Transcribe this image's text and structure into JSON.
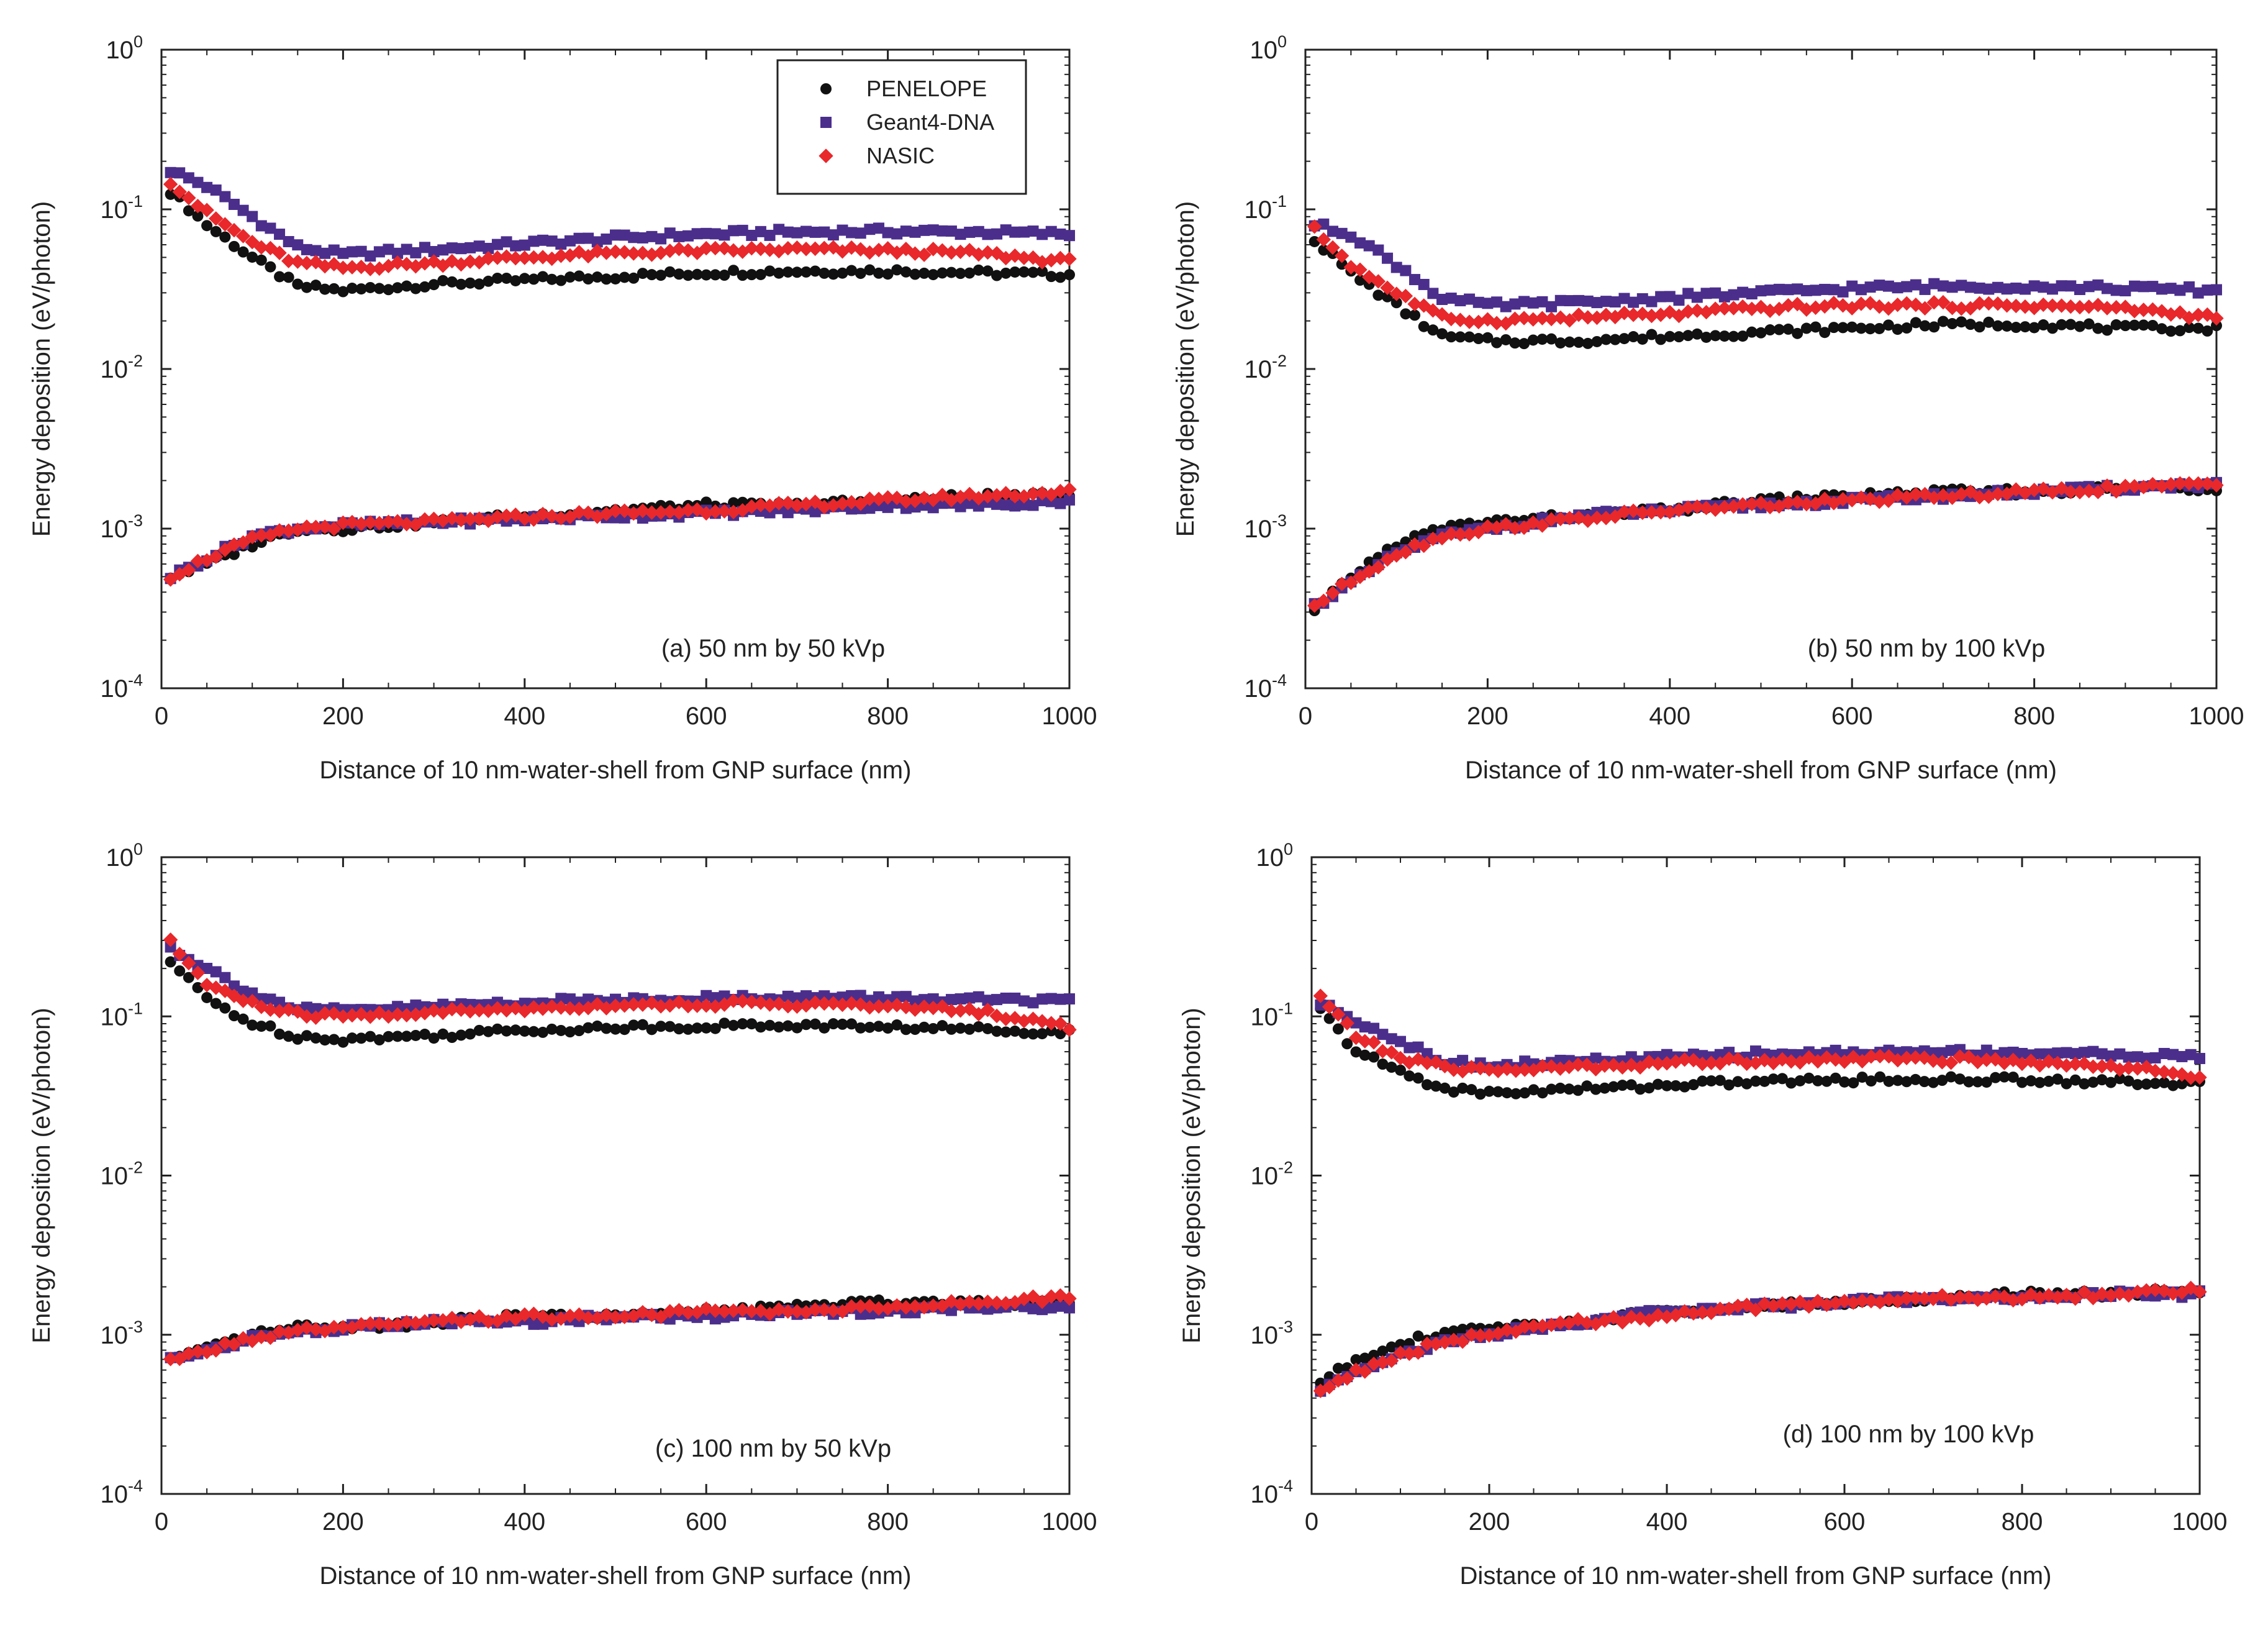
{
  "legend": {
    "entries": [
      {
        "label": "PENELOPE",
        "color": "#111111",
        "marker": "circle"
      },
      {
        "label": "Geant4-DNA",
        "color": "#4b2e8c",
        "marker": "square"
      },
      {
        "label": "NASIC",
        "color": "#e8282b",
        "marker": "diamond"
      }
    ]
  },
  "chart_data": [
    {
      "type": "scatter",
      "panel": "a",
      "annotation": "(a) 50 nm by 50 kVp",
      "xlabel": "Distance of 10 nm-water-shell from GNP surface (nm)",
      "ylabel": "Energy deposition (eV/photon)",
      "xlim": [
        0,
        1000
      ],
      "ylim": [
        0.0001,
        1
      ],
      "yscale": "log",
      "xticks": [
        "0",
        "200",
        "400",
        "600",
        "800",
        "1000"
      ],
      "yticks": [
        {
          "base": "10",
          "exp": "0"
        },
        {
          "base": "10",
          "exp": "-1"
        },
        {
          "base": "10",
          "exp": "-2"
        },
        {
          "base": "10",
          "exp": "-3"
        },
        {
          "base": "10",
          "exp": "-4"
        }
      ],
      "x": [
        10,
        50,
        100,
        150,
        200,
        300,
        400,
        500,
        600,
        700,
        800,
        900,
        1000
      ],
      "series": [
        {
          "name": "PENELOPE upper",
          "legend": "PENELOPE",
          "values": [
            0.13,
            0.08,
            0.05,
            0.033,
            0.031,
            0.034,
            0.036,
            0.038,
            0.04,
            0.041,
            0.041,
            0.04,
            0.039
          ]
        },
        {
          "name": "Geant4-DNA upper",
          "legend": "Geant4-DNA",
          "values": [
            0.175,
            0.14,
            0.09,
            0.058,
            0.052,
            0.056,
            0.061,
            0.066,
            0.07,
            0.072,
            0.073,
            0.072,
            0.07
          ]
        },
        {
          "name": "NASIC upper",
          "legend": "NASIC",
          "values": [
            0.15,
            0.095,
            0.062,
            0.046,
            0.043,
            0.046,
            0.05,
            0.053,
            0.055,
            0.056,
            0.055,
            0.053,
            0.047
          ]
        },
        {
          "name": "PENELOPE lower",
          "legend": "PENELOPE",
          "values": [
            0.0005,
            0.0006,
            0.0008,
            0.001,
            0.001,
            0.0011,
            0.0012,
            0.0013,
            0.0014,
            0.0014,
            0.0015,
            0.0016,
            0.0016
          ]
        },
        {
          "name": "Geant4-DNA lower",
          "legend": "Geant4-DNA",
          "values": [
            0.0005,
            0.00065,
            0.0009,
            0.001,
            0.00105,
            0.0011,
            0.00115,
            0.0012,
            0.00125,
            0.0013,
            0.0014,
            0.0014,
            0.0015
          ]
        },
        {
          "name": "NASIC lower",
          "legend": "NASIC",
          "values": [
            0.0005,
            0.00065,
            0.00085,
            0.001,
            0.00105,
            0.0011,
            0.00118,
            0.00125,
            0.0013,
            0.0014,
            0.0015,
            0.0016,
            0.0017
          ]
        }
      ]
    },
    {
      "type": "scatter",
      "panel": "b",
      "annotation": "(b) 50 nm by 100 kVp",
      "xlabel": "Distance of 10 nm-water-shell from GNP surface (nm)",
      "ylabel": "Energy deposition (eV/photon)",
      "xlim": [
        0,
        1000
      ],
      "ylim": [
        0.0001,
        1
      ],
      "yscale": "log",
      "xticks": [
        "0",
        "200",
        "400",
        "600",
        "800",
        "1000"
      ],
      "yticks": [
        {
          "base": "10",
          "exp": "0"
        },
        {
          "base": "10",
          "exp": "-1"
        },
        {
          "base": "10",
          "exp": "-2"
        },
        {
          "base": "10",
          "exp": "-3"
        },
        {
          "base": "10",
          "exp": "-4"
        }
      ],
      "x": [
        10,
        50,
        100,
        150,
        200,
        300,
        400,
        500,
        600,
        700,
        800,
        900,
        1000
      ],
      "series": [
        {
          "name": "PENELOPE upper",
          "legend": "PENELOPE",
          "values": [
            0.065,
            0.04,
            0.025,
            0.016,
            0.015,
            0.015,
            0.016,
            0.017,
            0.018,
            0.019,
            0.019,
            0.018,
            0.018
          ]
        },
        {
          "name": "Geant4-DNA upper",
          "legend": "Geant4-DNA",
          "values": [
            0.08,
            0.07,
            0.045,
            0.028,
            0.025,
            0.026,
            0.028,
            0.03,
            0.032,
            0.033,
            0.033,
            0.032,
            0.031
          ]
        },
        {
          "name": "NASIC upper",
          "legend": "NASIC",
          "values": [
            0.075,
            0.045,
            0.03,
            0.021,
            0.02,
            0.021,
            0.022,
            0.024,
            0.025,
            0.025,
            0.025,
            0.024,
            0.021
          ]
        },
        {
          "name": "PENELOPE lower",
          "legend": "PENELOPE",
          "values": [
            0.0003,
            0.0005,
            0.0008,
            0.001,
            0.0011,
            0.0012,
            0.0013,
            0.0015,
            0.0016,
            0.0017,
            0.0017,
            0.0018,
            0.0018
          ]
        },
        {
          "name": "Geant4-DNA lower",
          "legend": "Geant4-DNA",
          "values": [
            0.00033,
            0.00045,
            0.0007,
            0.0009,
            0.001,
            0.0012,
            0.0013,
            0.0014,
            0.0015,
            0.0016,
            0.0017,
            0.0018,
            0.0019
          ]
        },
        {
          "name": "NASIC lower",
          "legend": "NASIC",
          "values": [
            0.00033,
            0.00047,
            0.0007,
            0.0009,
            0.001,
            0.00115,
            0.0013,
            0.0014,
            0.0015,
            0.0016,
            0.0017,
            0.0018,
            0.0019
          ]
        }
      ]
    },
    {
      "type": "scatter",
      "panel": "c",
      "annotation": "(c) 100 nm by 50 kVp",
      "xlabel": "Distance of 10 nm-water-shell from GNP surface (nm)",
      "ylabel": "Energy deposition (eV/photon)",
      "xlim": [
        0,
        1000
      ],
      "ylim": [
        0.0001,
        1
      ],
      "yscale": "log",
      "xticks": [
        "0",
        "200",
        "400",
        "600",
        "800",
        "1000"
      ],
      "yticks": [
        {
          "base": "10",
          "exp": "0"
        },
        {
          "base": "10",
          "exp": "-1"
        },
        {
          "base": "10",
          "exp": "-2"
        },
        {
          "base": "10",
          "exp": "-3"
        },
        {
          "base": "10",
          "exp": "-4"
        }
      ],
      "x": [
        10,
        50,
        100,
        150,
        200,
        300,
        400,
        500,
        600,
        700,
        800,
        900,
        1000
      ],
      "series": [
        {
          "name": "PENELOPE upper",
          "legend": "PENELOPE",
          "values": [
            0.22,
            0.13,
            0.09,
            0.075,
            0.072,
            0.076,
            0.082,
            0.085,
            0.087,
            0.088,
            0.086,
            0.083,
            0.08
          ]
        },
        {
          "name": "Geant4-DNA upper",
          "legend": "Geant4-DNA",
          "values": [
            0.27,
            0.2,
            0.14,
            0.11,
            0.108,
            0.115,
            0.122,
            0.127,
            0.13,
            0.132,
            0.13,
            0.127,
            0.123
          ]
        },
        {
          "name": "NASIC upper",
          "legend": "NASIC",
          "values": [
            0.29,
            0.16,
            0.12,
            0.103,
            0.1,
            0.106,
            0.112,
            0.118,
            0.12,
            0.12,
            0.115,
            0.108,
            0.085
          ]
        },
        {
          "name": "PENELOPE lower",
          "legend": "PENELOPE",
          "values": [
            0.0007,
            0.0008,
            0.001,
            0.0011,
            0.0011,
            0.0012,
            0.0013,
            0.0013,
            0.0014,
            0.0015,
            0.0016,
            0.0016,
            0.0016
          ]
        },
        {
          "name": "Geant4-DNA lower",
          "legend": "Geant4-DNA",
          "values": [
            0.0007,
            0.0008,
            0.00095,
            0.00105,
            0.0011,
            0.0012,
            0.0012,
            0.0013,
            0.0013,
            0.0014,
            0.0014,
            0.0015,
            0.0015
          ]
        },
        {
          "name": "NASIC lower",
          "legend": "NASIC",
          "values": [
            0.00068,
            0.0008,
            0.00095,
            0.00105,
            0.0011,
            0.0012,
            0.0013,
            0.0013,
            0.0014,
            0.0014,
            0.0015,
            0.0016,
            0.0017
          ]
        }
      ]
    },
    {
      "type": "scatter",
      "panel": "d",
      "annotation": "(d) 100 nm by 100 kVp",
      "xlabel": "Distance of 10 nm-water-shell from GNP surface (nm)",
      "ylabel": "Energy deposition (eV/photon)",
      "xlim": [
        0,
        1000
      ],
      "ylim": [
        0.0001,
        1
      ],
      "yscale": "log",
      "xticks": [
        "0",
        "200",
        "400",
        "600",
        "800",
        "1000"
      ],
      "yticks": [
        {
          "base": "10",
          "exp": "0"
        },
        {
          "base": "10",
          "exp": "-1"
        },
        {
          "base": "10",
          "exp": "-2"
        },
        {
          "base": "10",
          "exp": "-3"
        },
        {
          "base": "10",
          "exp": "-4"
        }
      ],
      "x": [
        10,
        50,
        100,
        150,
        200,
        300,
        400,
        500,
        600,
        700,
        800,
        900,
        1000
      ],
      "series": [
        {
          "name": "PENELOPE upper",
          "legend": "PENELOPE",
          "values": [
            0.11,
            0.06,
            0.045,
            0.035,
            0.033,
            0.035,
            0.037,
            0.039,
            0.04,
            0.04,
            0.04,
            0.039,
            0.038
          ]
        },
        {
          "name": "Geant4-DNA upper",
          "legend": "Geant4-DNA",
          "values": [
            0.12,
            0.095,
            0.07,
            0.052,
            0.049,
            0.052,
            0.055,
            0.058,
            0.059,
            0.06,
            0.059,
            0.058,
            0.055
          ]
        },
        {
          "name": "NASIC upper",
          "legend": "NASIC",
          "values": [
            0.135,
            0.075,
            0.055,
            0.048,
            0.046,
            0.048,
            0.051,
            0.053,
            0.054,
            0.054,
            0.052,
            0.049,
            0.042
          ]
        },
        {
          "name": "PENELOPE lower",
          "legend": "PENELOPE",
          "values": [
            0.0005,
            0.0007,
            0.0009,
            0.001,
            0.0011,
            0.0012,
            0.0014,
            0.0015,
            0.0016,
            0.0017,
            0.0018,
            0.0018,
            0.0019
          ]
        },
        {
          "name": "Geant4-DNA lower",
          "legend": "Geant4-DNA",
          "values": [
            0.00045,
            0.0006,
            0.00075,
            0.0009,
            0.001,
            0.0012,
            0.0014,
            0.0015,
            0.0016,
            0.0017,
            0.0017,
            0.0018,
            0.0018
          ]
        },
        {
          "name": "NASIC lower",
          "legend": "NASIC",
          "values": [
            0.00045,
            0.00058,
            0.00075,
            0.0009,
            0.001,
            0.0012,
            0.0013,
            0.0015,
            0.0016,
            0.0017,
            0.0017,
            0.0018,
            0.0019
          ]
        }
      ]
    }
  ]
}
